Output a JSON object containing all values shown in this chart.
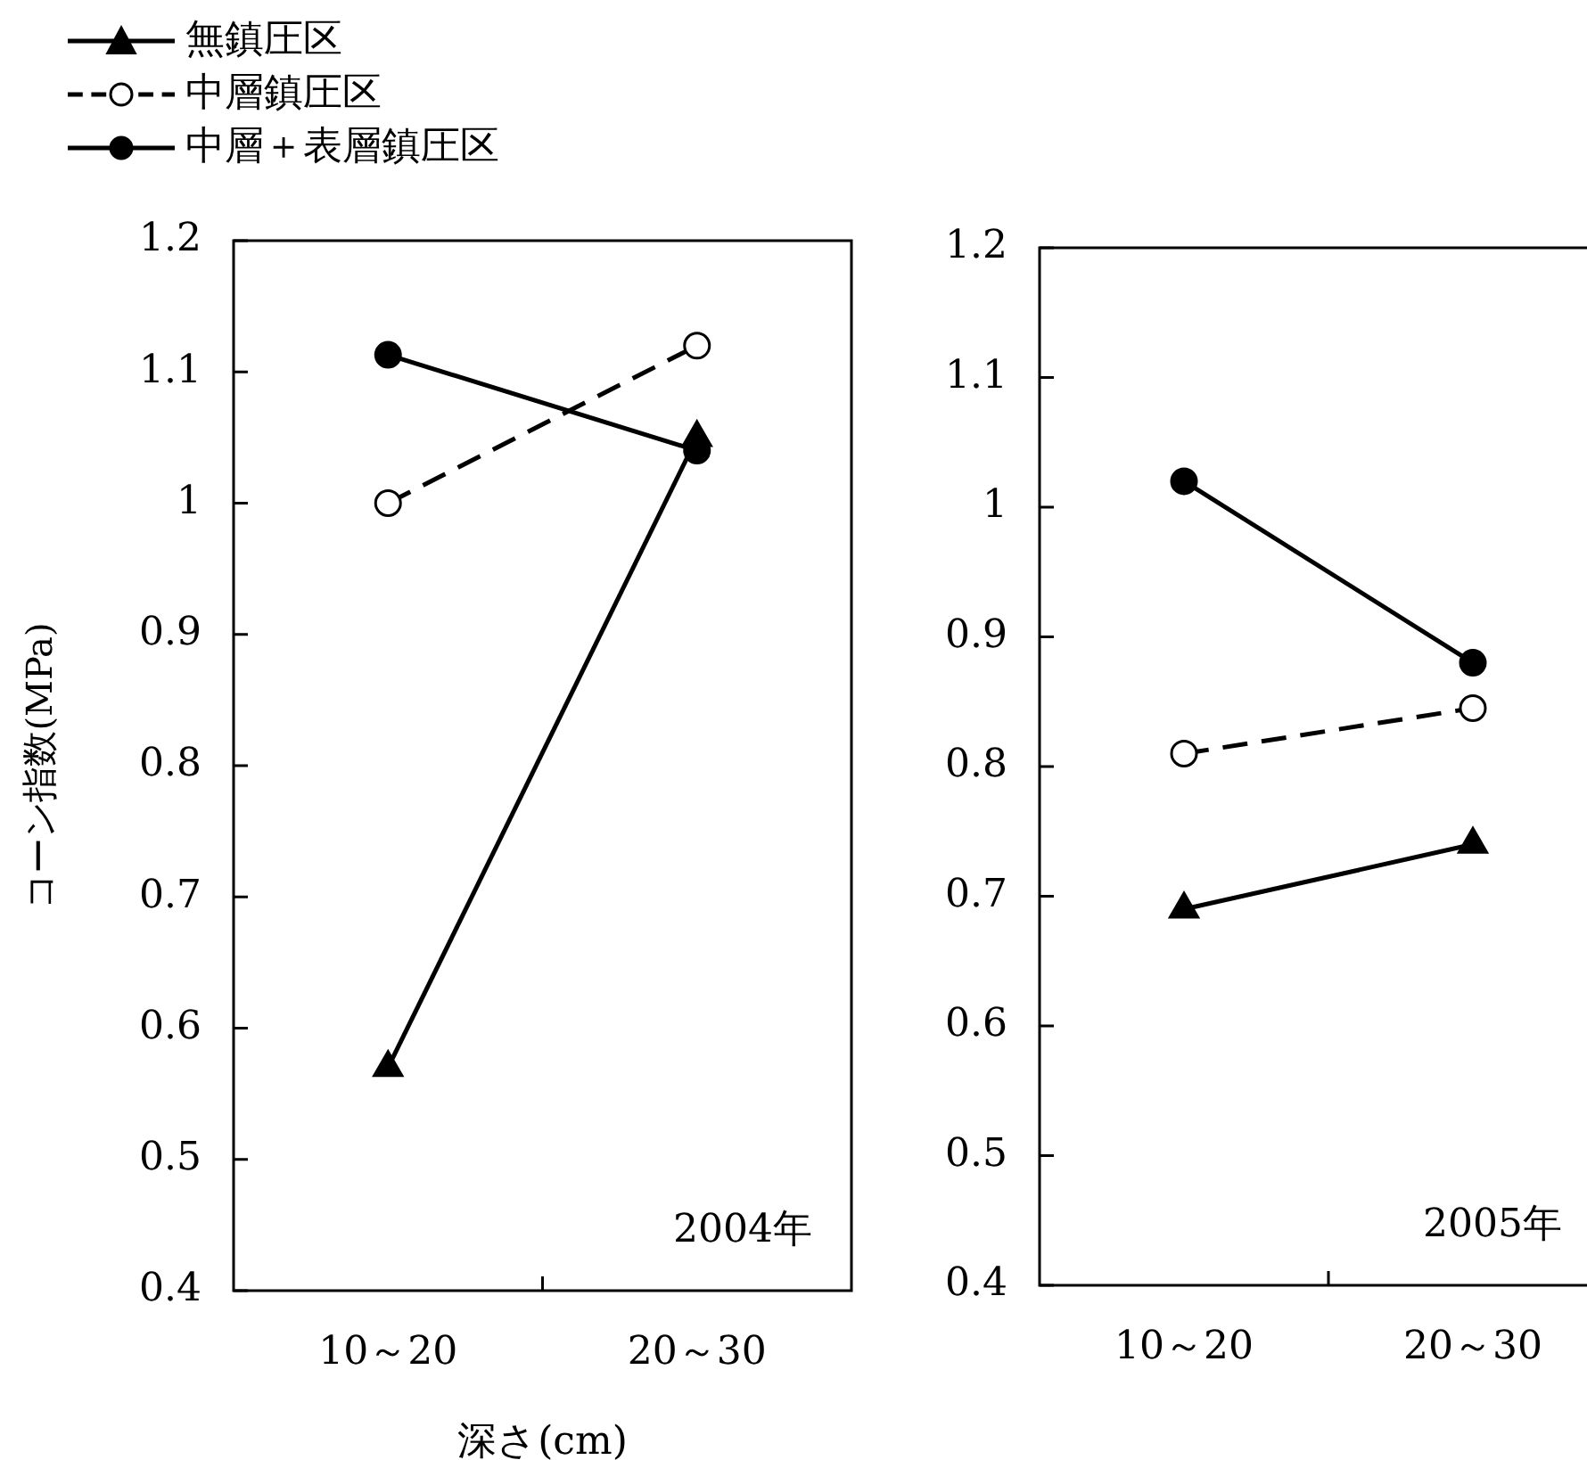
{
  "chart_data": [
    {
      "type": "line",
      "categories": [
        "10～20",
        "20～30"
      ],
      "xlabel": "深さ(cm)",
      "ylabel": "コーン指数(MPa)",
      "ylim": [
        0.4,
        1.2
      ],
      "yticks": [
        {
          "value": 0.4,
          "label": "0.4"
        },
        {
          "value": 0.5,
          "label": "0.5"
        },
        {
          "value": 0.6,
          "label": "0.6"
        },
        {
          "value": 0.7,
          "label": "0.7"
        },
        {
          "value": 0.8,
          "label": "0.8"
        },
        {
          "value": 0.9,
          "label": "0.9"
        },
        {
          "value": 1,
          "label": "1"
        },
        {
          "value": 1.1,
          "label": "1.1"
        },
        {
          "value": 1.2,
          "label": "1.2"
        }
      ],
      "grid": false,
      "legend": "top left",
      "annotations": [
        "2004年"
      ],
      "series": [
        {
          "name": "無鎮圧区",
          "color": "#000000",
          "marker": "triangle",
          "line_style": "solid",
          "values": [
            0.57,
            1.05
          ]
        },
        {
          "name": "中層鎮圧区",
          "color": "#000000",
          "marker": "circle",
          "line_style": "dashed",
          "values": [
            1.0,
            1.12
          ]
        },
        {
          "name": "中層＋表層鎮圧区",
          "color": "#000000",
          "marker": "circle",
          "line_style": "solid",
          "values": [
            1.113,
            1.04
          ]
        }
      ]
    },
    {
      "type": "line",
      "categories": [
        "10～20",
        "20～30"
      ],
      "ylim": [
        0.4,
        1.2
      ],
      "yticks": [
        {
          "value": 0.4,
          "label": "0.4"
        },
        {
          "value": 0.5,
          "label": "0.5"
        },
        {
          "value": 0.6,
          "label": "0.6"
        },
        {
          "value": 0.7,
          "label": "0.7"
        },
        {
          "value": 0.8,
          "label": "0.8"
        },
        {
          "value": 0.9,
          "label": "0.9"
        },
        {
          "value": 1,
          "label": "1"
        },
        {
          "value": 1.1,
          "label": "1.1"
        },
        {
          "value": 1.2,
          "label": "1.2"
        }
      ],
      "grid": false,
      "annotations": [
        "2005年"
      ],
      "series": [
        {
          "color": "#000000",
          "marker": "triangle",
          "line_style": "solid",
          "values": [
            0.69,
            0.74
          ]
        },
        {
          "color": "#000000",
          "marker": "circle",
          "line_style": "dashed",
          "values": [
            0.81,
            0.845
          ]
        },
        {
          "color": "#000000",
          "marker": "circle",
          "line_style": "solid",
          "values": [
            1.02,
            0.88
          ]
        }
      ]
    }
  ]
}
